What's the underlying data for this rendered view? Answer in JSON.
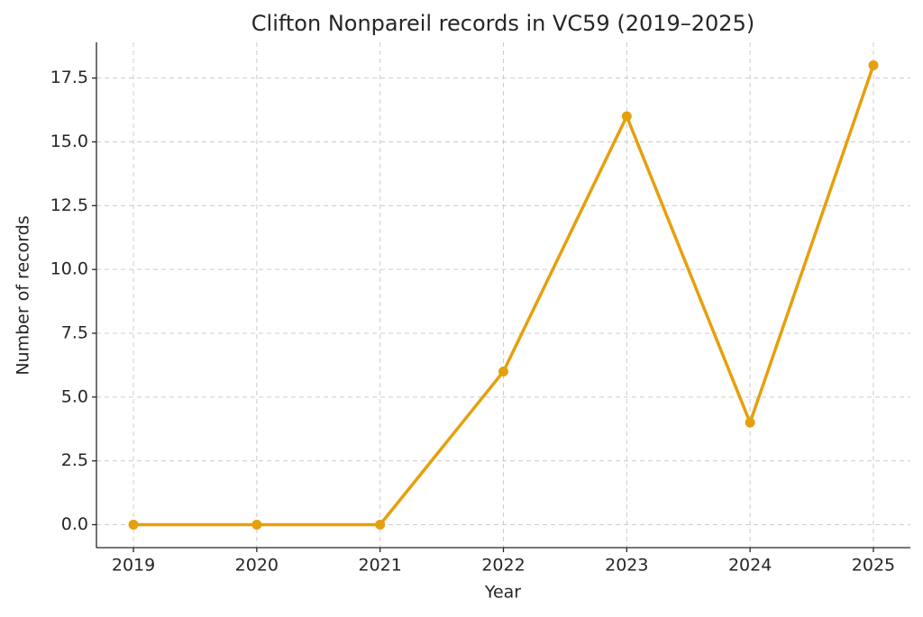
{
  "chart_data": {
    "type": "line",
    "title": "Clifton Nonpareil records in VC59 (2019–2025)",
    "x_label": "Year",
    "y_label": "Number of records",
    "x": [
      2019,
      2020,
      2021,
      2022,
      2023,
      2024,
      2025
    ],
    "values": [
      0,
      0,
      0,
      6,
      16,
      4,
      18
    ],
    "color": "#e5a00d",
    "xlim": [
      2018.7,
      2025.3
    ],
    "xticks": [
      2019,
      2020,
      2021,
      2022,
      2023,
      2024,
      2025
    ],
    "ylim": [
      -0.9,
      18.9
    ],
    "yticks": [
      {
        "value": 0,
        "label": "0.0"
      },
      2.5,
      {
        "value": 5,
        "label": "5.0"
      },
      7.5,
      {
        "value": 10,
        "label": "10.0"
      },
      12.5,
      {
        "value": 15,
        "label": "15.0"
      },
      17.5
    ],
    "grid": true
  }
}
